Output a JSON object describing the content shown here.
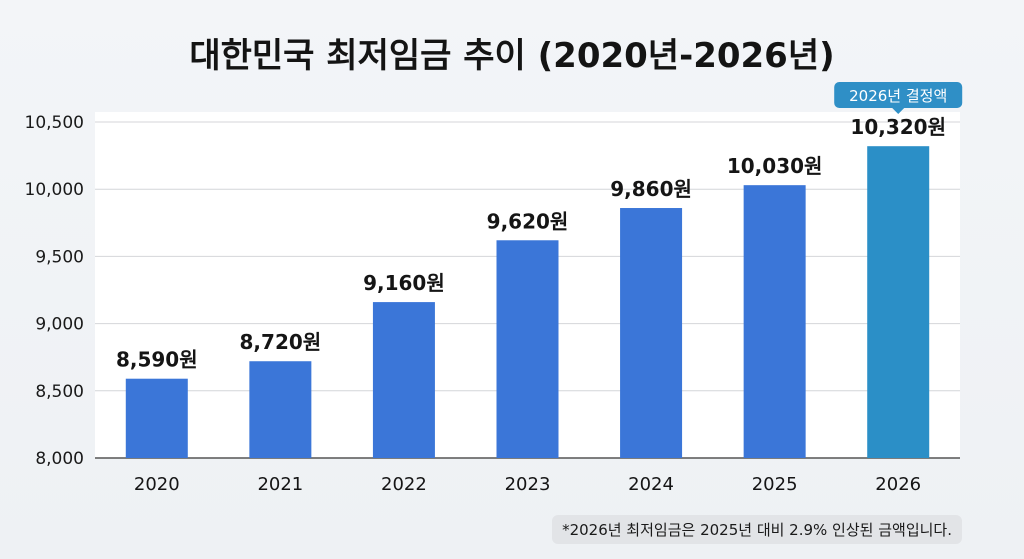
{
  "chart_data": {
    "type": "bar",
    "title": "대한민국 최저임금 추이 (2020년-2026년)",
    "categories": [
      "2020",
      "2021",
      "2022",
      "2023",
      "2024",
      "2025",
      "2026"
    ],
    "values": [
      8590,
      8720,
      9160,
      9620,
      9860,
      10030,
      10320
    ],
    "data_labels": [
      "8,590원",
      "8,720원",
      "9,160원",
      "9,620원",
      "9,860원",
      "10,030원",
      "10,320원"
    ],
    "ylim": [
      8000,
      10500
    ],
    "yticks": [
      8000,
      8500,
      9000,
      9500,
      10000,
      10500
    ],
    "ytick_labels": [
      "8,000",
      "8,500",
      "9,000",
      "9,500",
      "10,000",
      "10,500"
    ],
    "grid": true,
    "xlabel": "",
    "ylabel": "",
    "colors": {
      "bar": "#3b76d8",
      "highlight": "#2b8fc7",
      "badge": "#2f8fc6"
    },
    "annotation": "2026년 결정액",
    "footnote": "*2026년 최저임금은 2025년 대비 2.9% 인상된 금액입니다."
  }
}
